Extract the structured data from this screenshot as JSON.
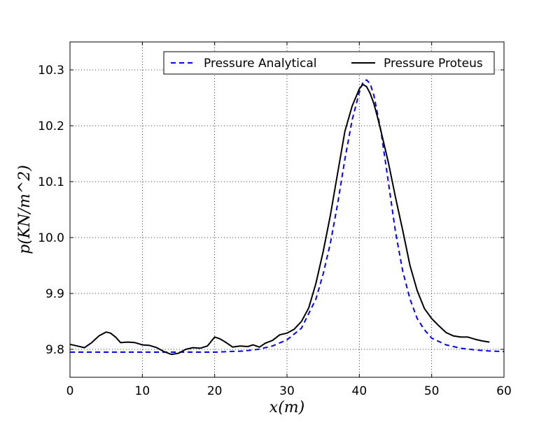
{
  "chart_data": {
    "type": "line",
    "title": "",
    "xlabel": "x(m)",
    "ylabel": "p(KN/m^2)",
    "xlim": [
      0,
      60
    ],
    "ylim": [
      9.75,
      10.35
    ],
    "xticks": [
      0,
      10,
      20,
      30,
      40,
      50,
      60
    ],
    "yticks": [
      9.8,
      9.9,
      10.0,
      10.1,
      10.2,
      10.3
    ],
    "xtick_labels": [
      "0",
      "10",
      "20",
      "30",
      "40",
      "50",
      "60"
    ],
    "ytick_labels": [
      "9.8",
      "9.9",
      "10.0",
      "10.1",
      "10.2",
      "10.3"
    ],
    "grid": true,
    "legend_position": "top-right",
    "series": [
      {
        "name": "Pressure Analytical",
        "color": "#0000ff",
        "style": "dashed",
        "x": [
          0,
          2,
          4,
          6,
          8,
          10,
          12,
          14,
          16,
          18,
          20,
          22,
          24,
          26,
          28,
          30,
          32,
          34,
          35,
          36,
          37,
          38,
          39,
          40,
          40.5,
          41,
          41.5,
          42,
          43,
          44,
          45,
          46,
          47,
          48,
          49,
          50,
          52,
          54,
          56,
          58,
          60
        ],
        "y": [
          9.795,
          9.795,
          9.795,
          9.795,
          9.795,
          9.795,
          9.795,
          9.795,
          9.795,
          9.795,
          9.795,
          9.796,
          9.797,
          9.8,
          9.806,
          9.817,
          9.838,
          9.89,
          9.935,
          9.99,
          10.06,
          10.14,
          10.21,
          10.26,
          10.278,
          10.282,
          10.275,
          10.255,
          10.19,
          10.1,
          10.01,
          9.94,
          9.89,
          9.855,
          9.835,
          9.82,
          9.808,
          9.802,
          9.799,
          9.797,
          9.796
        ]
      },
      {
        "name": "Pressure Proteus",
        "color": "#000000",
        "style": "solid",
        "x": [
          0,
          1,
          2,
          3,
          4,
          5,
          5.6,
          6.3,
          7,
          8,
          9,
          10,
          11,
          12,
          13,
          14,
          15,
          16,
          17,
          18,
          19,
          20,
          20.7,
          21.6,
          22.5,
          23.5,
          24.6,
          25.3,
          26.2,
          27,
          28,
          29,
          30,
          31,
          32,
          33,
          34,
          35,
          36,
          37,
          38,
          39,
          40,
          40.5,
          41,
          41.5,
          42,
          42.5,
          43,
          44,
          45,
          46,
          47,
          48,
          49,
          50,
          51,
          52,
          53,
          54,
          55,
          56,
          57,
          58
        ],
        "y": [
          9.809,
          9.806,
          9.803,
          9.812,
          9.824,
          9.831,
          9.829,
          9.822,
          9.812,
          9.813,
          9.812,
          9.808,
          9.807,
          9.803,
          9.796,
          9.791,
          9.793,
          9.8,
          9.803,
          9.802,
          9.806,
          9.822,
          9.819,
          9.812,
          9.804,
          9.806,
          9.805,
          9.808,
          9.804,
          9.811,
          9.816,
          9.826,
          9.829,
          9.836,
          9.85,
          9.874,
          9.918,
          9.975,
          10.04,
          10.115,
          10.19,
          10.235,
          10.266,
          10.274,
          10.27,
          10.258,
          10.24,
          10.216,
          10.19,
          10.135,
          10.072,
          10.013,
          9.95,
          9.905,
          9.873,
          9.855,
          9.842,
          9.83,
          9.824,
          9.822,
          9.822,
          9.818,
          9.815,
          9.813
        ]
      }
    ],
    "legend": [
      "Pressure Analytical",
      "Pressure Proteus"
    ]
  }
}
